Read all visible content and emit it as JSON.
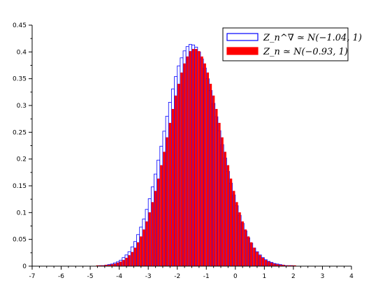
{
  "chart_data": {
    "type": "bar",
    "xlim": [
      -7,
      4
    ],
    "ylim": [
      0,
      0.45
    ],
    "x_ticks": [
      -7,
      -6,
      -5,
      -4,
      -3,
      -2,
      -1,
      0,
      1,
      2,
      3,
      4
    ],
    "y_ticks": [
      0,
      0.05,
      0.1,
      0.15,
      0.2,
      0.25,
      0.3,
      0.35,
      0.4,
      0.45
    ],
    "x_tick_labels": [
      "-7",
      "-6",
      "-5",
      "-4",
      "-3",
      "-2",
      "-1",
      "0",
      "1",
      "2",
      "3",
      "4"
    ],
    "y_tick_labels": [
      "0",
      "0.05",
      "0.1",
      "0.15",
      "0.2",
      "0.25",
      "0.3",
      "0.35",
      "0.4",
      "0.45"
    ],
    "grid": false,
    "legend_position": "top-right",
    "bin_width": 0.1,
    "bin_centers": [
      -4.75,
      -4.65,
      -4.55,
      -4.45,
      -4.35,
      -4.25,
      -4.15,
      -4.05,
      -3.95,
      -3.85,
      -3.75,
      -3.65,
      -3.55,
      -3.45,
      -3.35,
      -3.25,
      -3.15,
      -3.05,
      -2.95,
      -2.85,
      -2.75,
      -2.65,
      -2.55,
      -2.45,
      -2.35,
      -2.25,
      -2.15,
      -2.05,
      -1.95,
      -1.85,
      -1.75,
      -1.65,
      -1.55,
      -1.45,
      -1.35,
      -1.25,
      -1.15,
      -1.05,
      -0.95,
      -0.85,
      -0.75,
      -0.65,
      -0.55,
      -0.45,
      -0.35,
      -0.25,
      -0.15,
      -0.05,
      0.05,
      0.15,
      0.25,
      0.35,
      0.45,
      0.55,
      0.65,
      0.75,
      0.85,
      0.95,
      1.05,
      1.15,
      1.25,
      1.35,
      1.45,
      1.55,
      1.65,
      1.75,
      1.85,
      1.95,
      2.05,
      2.15,
      2.25,
      2.35,
      2.45,
      2.55,
      2.65,
      2.75,
      2.85
    ],
    "series": [
      {
        "name": "Z_n^∇ ≃ N(−1.04, 1)",
        "color": "#0000ff",
        "values": [
          0.0,
          0.001,
          0.001,
          0.002,
          0.003,
          0.004,
          0.006,
          0.008,
          0.011,
          0.016,
          0.021,
          0.027,
          0.036,
          0.046,
          0.059,
          0.073,
          0.088,
          0.106,
          0.126,
          0.148,
          0.172,
          0.198,
          0.224,
          0.252,
          0.28,
          0.306,
          0.331,
          0.354,
          0.374,
          0.389,
          0.402,
          0.41,
          0.414,
          0.413,
          0.409,
          0.4,
          0.387,
          0.37,
          0.35,
          0.328,
          0.304,
          0.279,
          0.253,
          0.227,
          0.202,
          0.177,
          0.155,
          0.133,
          0.113,
          0.095,
          0.08,
          0.066,
          0.053,
          0.043,
          0.034,
          0.027,
          0.021,
          0.016,
          0.012,
          0.009,
          0.007,
          0.005,
          0.004,
          0.003,
          0.002,
          0.001,
          0.001,
          0.001,
          0.0,
          0.0,
          0.0,
          0.0,
          0.0,
          0.0,
          0.0,
          0.0,
          0.0
        ]
      },
      {
        "name": "Z_n ≃ N(−0.93, 1)",
        "color": "#ff0000",
        "values": [
          0.001,
          0.001,
          0.001,
          0.002,
          0.002,
          0.003,
          0.004,
          0.006,
          0.008,
          0.011,
          0.015,
          0.02,
          0.026,
          0.034,
          0.044,
          0.055,
          0.068,
          0.083,
          0.1,
          0.119,
          0.14,
          0.163,
          0.188,
          0.213,
          0.24,
          0.267,
          0.293,
          0.318,
          0.34,
          0.361,
          0.378,
          0.391,
          0.401,
          0.405,
          0.405,
          0.401,
          0.391,
          0.378,
          0.361,
          0.34,
          0.318,
          0.293,
          0.267,
          0.24,
          0.213,
          0.188,
          0.163,
          0.14,
          0.119,
          0.1,
          0.083,
          0.068,
          0.055,
          0.044,
          0.034,
          0.026,
          0.02,
          0.015,
          0.011,
          0.008,
          0.006,
          0.004,
          0.003,
          0.002,
          0.002,
          0.001,
          0.001,
          0.001,
          0.001,
          0.0,
          0.0,
          0.0,
          0.0,
          0.0,
          0.0,
          0.0,
          0.0
        ]
      }
    ]
  }
}
